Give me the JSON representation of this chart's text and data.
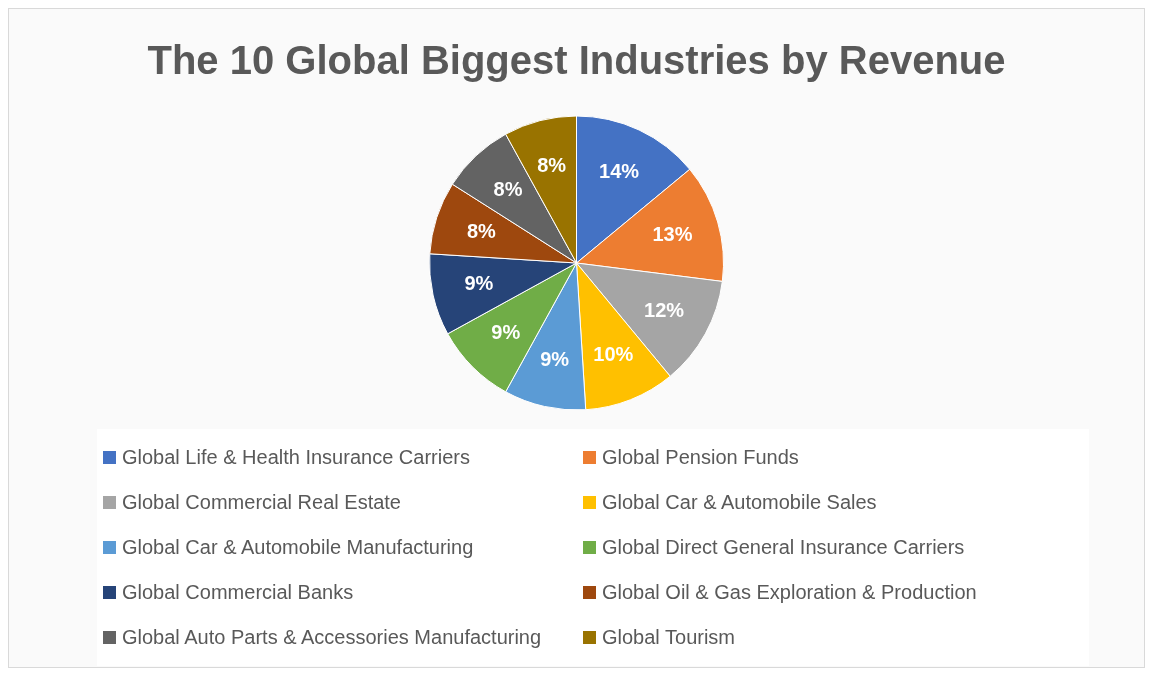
{
  "chart_data": {
    "type": "pie",
    "title": "The 10 Global Biggest Industries by Revenue",
    "categories": [
      "Global Life & Health Insurance Carriers",
      "Global Pension Funds",
      "Global Commercial Real Estate",
      "Global Car & Automobile Sales",
      "Global Car & Automobile Manufacturing",
      "Global Direct General Insurance Carriers",
      "Global Commercial Banks",
      "Global Oil & Gas Exploration & Production",
      "Global Auto Parts & Accessories Manufacturing",
      "Global Tourism"
    ],
    "values": [
      14,
      13,
      12,
      10,
      9,
      9,
      9,
      8,
      8,
      8
    ],
    "value_labels": [
      "14%",
      "13%",
      "12%",
      "10%",
      "9%",
      "9%",
      "9%",
      "8%",
      "8%",
      "8%"
    ],
    "colors": [
      "#4472c4",
      "#ed7d31",
      "#a5a5a5",
      "#ffc000",
      "#5b9bd5",
      "#70ad47",
      "#264478",
      "#9e480e",
      "#636363",
      "#997300"
    ],
    "legend": "bottom"
  }
}
